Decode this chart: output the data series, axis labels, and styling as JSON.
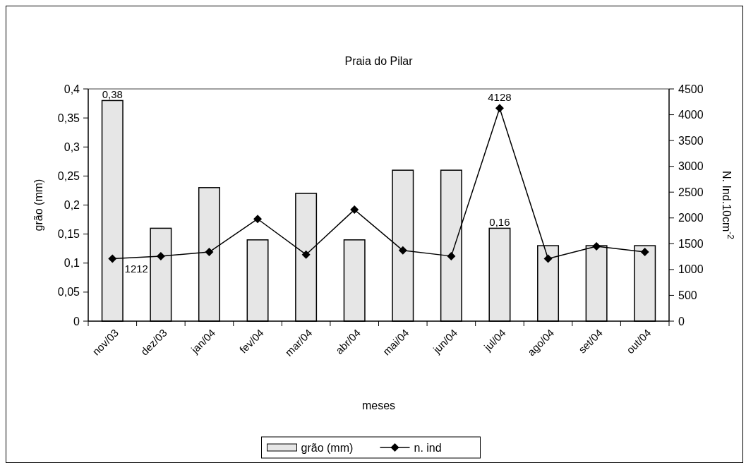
{
  "chart_data": {
    "type": "bar",
    "title": "Praia do Pilar",
    "xlabel": "meses",
    "ylabel": "grão (mm)",
    "y2label": "N. Ind.10cm$^{-2}$",
    "categories": [
      "nov/03",
      "dez/03",
      "jan/04",
      "fev/04",
      "mar/04",
      "abr/04",
      "mai/04",
      "jun/04",
      "jul/04",
      "ago/04",
      "set/04",
      "out/04"
    ],
    "series": [
      {
        "name": "grão (mm)",
        "color": "#e6e6e6",
        "values": [
          0.38,
          0.16,
          0.23,
          0.14,
          0.22,
          0.14,
          0.26,
          0.26,
          0.16,
          0.13,
          0.13,
          0.13
        ],
        "value_labels": [
          "0,38",
          null,
          null,
          null,
          null,
          null,
          null,
          null,
          "0,16",
          null,
          null,
          null
        ]
      },
      {
        "name": "n. ind",
        "type": "line",
        "axis": "y2",
        "color": "#000000",
        "marker": "diamond",
        "values": [
          1212,
          1260,
          1340,
          1980,
          1290,
          2160,
          1370,
          1260,
          4128,
          1210,
          1450,
          1340
        ],
        "value_labels": [
          "1212",
          null,
          null,
          null,
          null,
          null,
          null,
          null,
          "4128",
          null,
          null,
          null
        ]
      }
    ],
    "ylim": [
      0,
      0.4
    ],
    "yticks": [
      0,
      {
        "value": 0.05,
        "label": "0,05"
      },
      {
        "value": 0.1,
        "label": "0,1"
      },
      {
        "value": 0.15,
        "label": "0,15"
      },
      {
        "value": 0.2,
        "label": "0,2"
      },
      {
        "value": 0.25,
        "label": "0,25"
      },
      {
        "value": 0.3,
        "label": "0,3"
      },
      {
        "value": 0.35,
        "label": "0,35"
      },
      {
        "value": 0.4,
        "label": "0,4"
      }
    ],
    "y2lim": [
      0,
      4500
    ],
    "y2ticks": [
      0,
      500,
      1000,
      1500,
      2000,
      2500,
      3000,
      3500,
      4000,
      4500
    ],
    "grid": false,
    "legend": "bottom"
  }
}
